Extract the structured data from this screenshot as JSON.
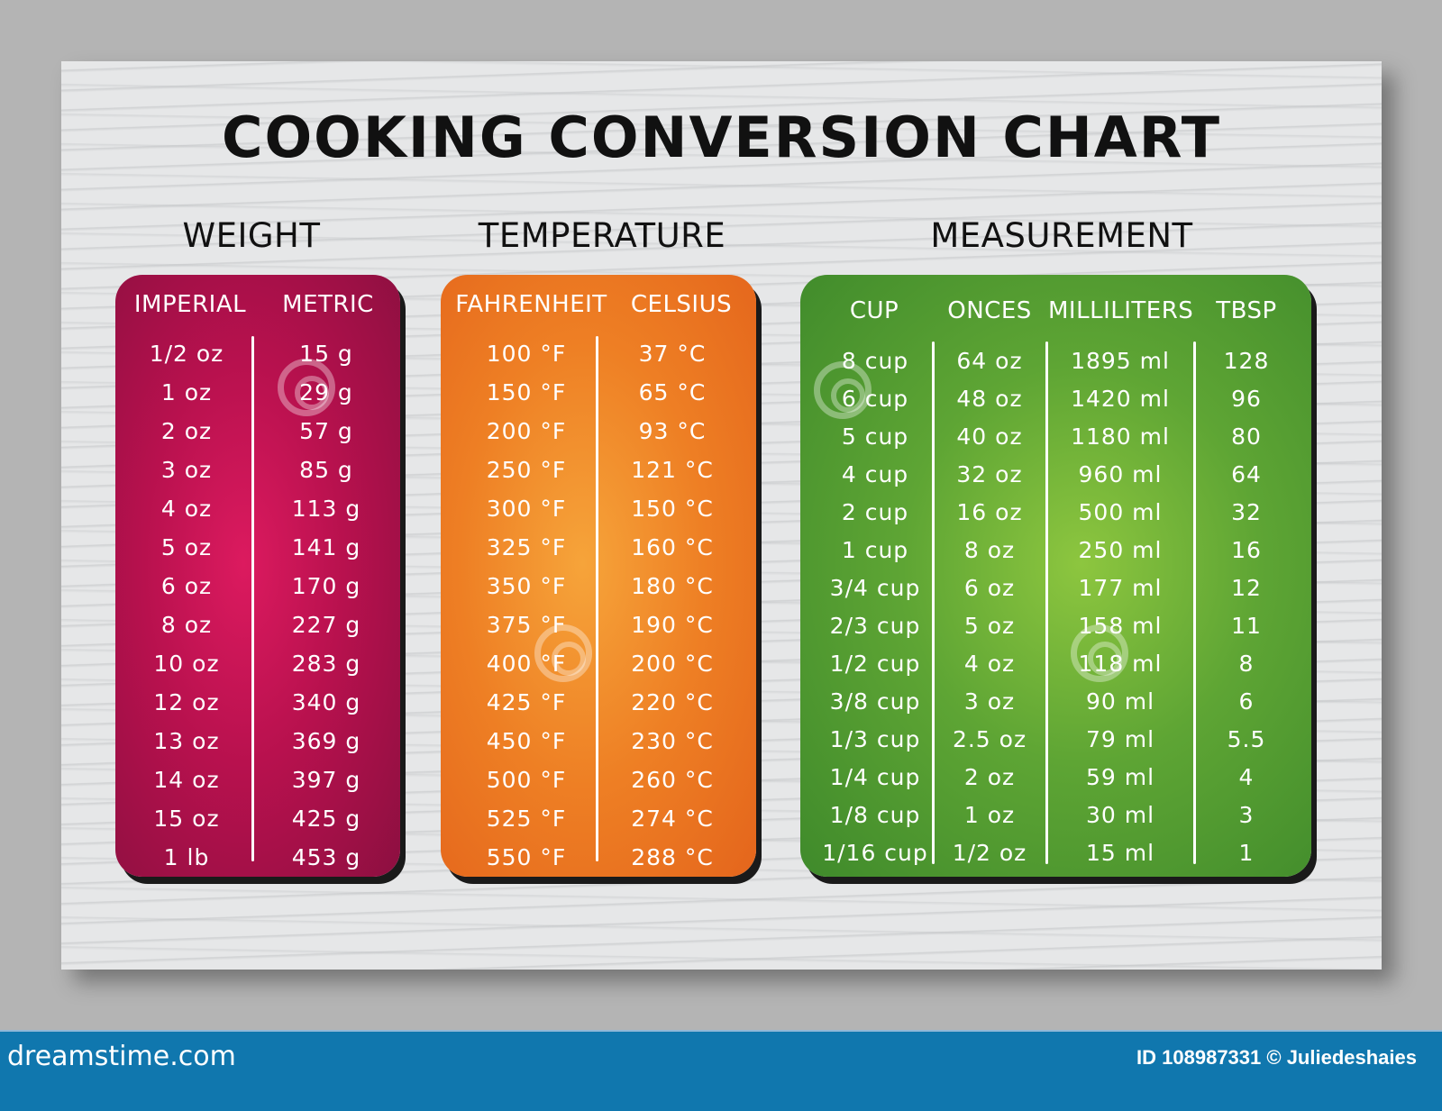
{
  "title": "COOKING CONVERSION CHART",
  "sections": {
    "weight": {
      "heading": "WEIGHT",
      "color": "#b8114e",
      "columns": [
        "IMPERIAL",
        "METRIC"
      ],
      "imperial": [
        "1/2 oz",
        "1 oz",
        "2 oz",
        "3 oz",
        "4 oz",
        "5 oz",
        "6 oz",
        "8 oz",
        "10 oz",
        "12 oz",
        "13 oz",
        "14 oz",
        "15 oz",
        "1 lb"
      ],
      "metric": [
        "15 g",
        "29 g",
        "57 g",
        "85 g",
        "113 g",
        "141 g",
        "170 g",
        "227 g",
        "283 g",
        "340 g",
        "369 g",
        "397 g",
        "425 g",
        "453 g"
      ]
    },
    "temperature": {
      "heading": "TEMPERATURE",
      "color": "#ee7f24",
      "columns": [
        "FAHRENHEIT",
        "CELSIUS"
      ],
      "fahrenheit": [
        "100 °F",
        "150 °F",
        "200 °F",
        "250 °F",
        "300 °F",
        "325 °F",
        "350 °F",
        "375 °F",
        "400 °F",
        "425 °F",
        "450 °F",
        "500 °F",
        "525 °F",
        "550 °F"
      ],
      "celsius": [
        "37 °C",
        "65 °C",
        "93 °C",
        "121 °C",
        "150 °C",
        "160 °C",
        "180 °C",
        "190 °C",
        "200 °C",
        "220 °C",
        "230 °C",
        "260 °C",
        "274 °C",
        "288 °C"
      ]
    },
    "measurement": {
      "heading": "MEASUREMENT",
      "color": "#5ea534",
      "columns": [
        "CUP",
        "ONCES",
        "MILLILITERS",
        "TBSP"
      ],
      "cup": [
        "8 cup",
        "6 cup",
        "5 cup",
        "4 cup",
        "2 cup",
        "1 cup",
        "3/4 cup",
        "2/3 cup",
        "1/2 cup",
        "3/8 cup",
        "1/3 cup",
        "1/4 cup",
        "1/8 cup",
        "1/16 cup"
      ],
      "ounces": [
        "64 oz",
        "48 oz",
        "40 oz",
        "32 oz",
        "16 oz",
        "8 oz",
        "6 oz",
        "5 oz",
        "4 oz",
        "3 oz",
        "2.5 oz",
        "2 oz",
        "1 oz",
        "1/2 oz"
      ],
      "milliliters": [
        "1895 ml",
        "1420 ml",
        "1180 ml",
        "960 ml",
        "500 ml",
        "250 ml",
        "177 ml",
        "158 ml",
        "118 ml",
        "90 ml",
        "79 ml",
        "59 ml",
        "30 ml",
        "15 ml"
      ],
      "tbsp": [
        "128",
        "96",
        "80",
        "64",
        "32",
        "16",
        "12",
        "11",
        "8",
        "6",
        "5.5",
        "4",
        "3",
        "1"
      ]
    }
  },
  "footer": {
    "brand": "dreamstime.com",
    "credit": "ID 108987331 © Juliedeshaies",
    "background": "#1077ae"
  }
}
